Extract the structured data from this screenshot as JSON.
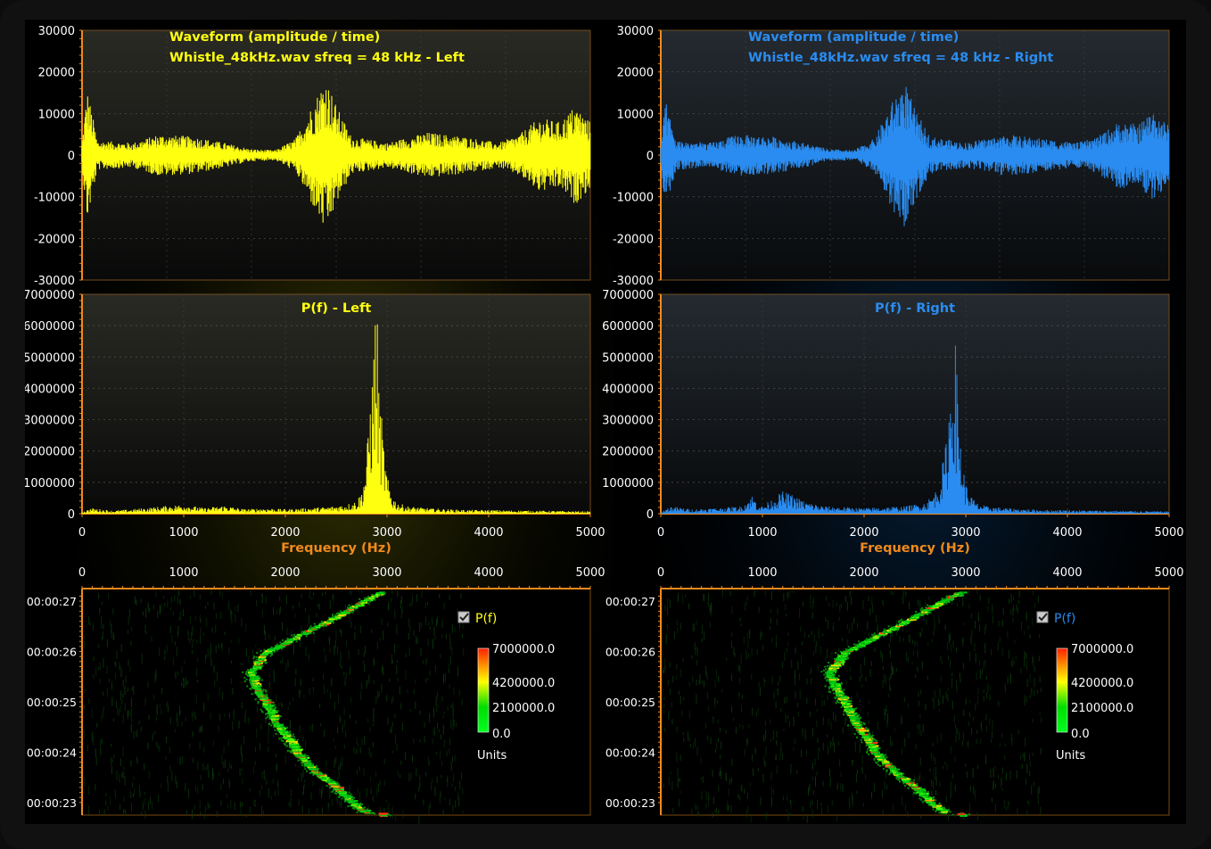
{
  "left": {
    "color": "#ffff10",
    "waveform": {
      "title_line1": "Waveform (amplitude / time)",
      "title_line2": "Whistle_48kHz.wav sfreq = 48 kHz - Left",
      "y_ticks": [
        "30000",
        "20000",
        "10000",
        "0",
        "-10000",
        "-20000",
        "-30000"
      ],
      "ylim": [
        -30000,
        30000
      ]
    },
    "spectrum": {
      "title": "P(f) - Left",
      "y_ticks": [
        "7000000",
        "6000000",
        "5000000",
        "4000000",
        "3000000",
        "2000000",
        "1000000",
        "0"
      ],
      "ylim": [
        0,
        7000000
      ],
      "x_ticks": [
        "0",
        "1000",
        "2000",
        "3000",
        "4000",
        "5000"
      ],
      "xlabel": "Frequency (Hz)"
    },
    "spectrogram": {
      "x_ticks": [
        "0",
        "1000",
        "2000",
        "3000",
        "4000",
        "5000"
      ],
      "y_ticks": [
        "00:00:27",
        "00:00:26",
        "00:00:25",
        "00:00:24",
        "00:00:23"
      ],
      "legend_label": "P(f)",
      "scale_labels": [
        "7000000.0",
        "4200000.0",
        "2100000.0",
        "0.0"
      ],
      "units": "Units"
    }
  },
  "right": {
    "color": "#2a8cf0",
    "waveform": {
      "title_line1": "Waveform (amplitude / time)",
      "title_line2": "Whistle_48kHz.wav sfreq = 48 kHz - Right",
      "y_ticks": [
        "30000",
        "20000",
        "10000",
        "0",
        "-10000",
        "-20000",
        "-30000"
      ],
      "ylim": [
        -30000,
        30000
      ]
    },
    "spectrum": {
      "title": "P(f) - Right",
      "y_ticks": [
        "7000000",
        "6000000",
        "5000000",
        "4000000",
        "3000000",
        "2000000",
        "1000000",
        "0"
      ],
      "ylim": [
        0,
        7000000
      ],
      "x_ticks": [
        "0",
        "1000",
        "2000",
        "3000",
        "4000",
        "5000"
      ],
      "xlabel": "Frequency (Hz)"
    },
    "spectrogram": {
      "x_ticks": [
        "0",
        "1000",
        "2000",
        "3000",
        "4000",
        "5000"
      ],
      "y_ticks": [
        "00:00:27",
        "00:00:26",
        "00:00:25",
        "00:00:24",
        "00:00:23"
      ],
      "legend_label": "P(f)",
      "scale_labels": [
        "7000000.0",
        "4200000.0",
        "2100000.0",
        "0.0"
      ],
      "units": "Units"
    }
  },
  "chart_data": [
    {
      "type": "line",
      "title": "Waveform (amplitude / time)",
      "subtitle": "Whistle_48kHz.wav sfreq = 48 kHz - Left",
      "ylim": [
        -30000,
        30000
      ],
      "grid": true,
      "envelope": [
        {
          "t": 0.0,
          "a": 3000
        },
        {
          "t": 0.01,
          "a": 16000
        },
        {
          "t": 0.02,
          "a": 10000
        },
        {
          "t": 0.03,
          "a": 3500
        },
        {
          "t": 0.1,
          "a": 3000
        },
        {
          "t": 0.15,
          "a": 5000
        },
        {
          "t": 0.22,
          "a": 4500
        },
        {
          "t": 0.28,
          "a": 3000
        },
        {
          "t": 0.33,
          "a": 1500
        },
        {
          "t": 0.38,
          "a": 1200
        },
        {
          "t": 0.42,
          "a": 4000
        },
        {
          "t": 0.46,
          "a": 14000
        },
        {
          "t": 0.48,
          "a": 19000
        },
        {
          "t": 0.5,
          "a": 12000
        },
        {
          "t": 0.53,
          "a": 4500
        },
        {
          "t": 0.6,
          "a": 3000
        },
        {
          "t": 0.68,
          "a": 5500
        },
        {
          "t": 0.75,
          "a": 4500
        },
        {
          "t": 0.82,
          "a": 3000
        },
        {
          "t": 0.86,
          "a": 5000
        },
        {
          "t": 0.9,
          "a": 9000
        },
        {
          "t": 0.94,
          "a": 8000
        },
        {
          "t": 0.97,
          "a": 12000
        },
        {
          "t": 1.0,
          "a": 8000
        }
      ]
    },
    {
      "type": "line",
      "title": "Waveform (amplitude / time)",
      "subtitle": "Whistle_48kHz.wav sfreq = 48 kHz - Right",
      "ylim": [
        -30000,
        30000
      ],
      "grid": true,
      "envelope": [
        {
          "t": 0.0,
          "a": 3000
        },
        {
          "t": 0.01,
          "a": 13000
        },
        {
          "t": 0.02,
          "a": 8000
        },
        {
          "t": 0.03,
          "a": 3500
        },
        {
          "t": 0.1,
          "a": 3000
        },
        {
          "t": 0.15,
          "a": 5000
        },
        {
          "t": 0.22,
          "a": 4500
        },
        {
          "t": 0.28,
          "a": 3000
        },
        {
          "t": 0.33,
          "a": 1500
        },
        {
          "t": 0.38,
          "a": 1200
        },
        {
          "t": 0.42,
          "a": 4000
        },
        {
          "t": 0.46,
          "a": 14000
        },
        {
          "t": 0.48,
          "a": 18000
        },
        {
          "t": 0.5,
          "a": 11000
        },
        {
          "t": 0.53,
          "a": 4500
        },
        {
          "t": 0.6,
          "a": 3000
        },
        {
          "t": 0.68,
          "a": 5000
        },
        {
          "t": 0.75,
          "a": 4000
        },
        {
          "t": 0.82,
          "a": 3000
        },
        {
          "t": 0.86,
          "a": 4500
        },
        {
          "t": 0.9,
          "a": 8000
        },
        {
          "t": 0.94,
          "a": 7500
        },
        {
          "t": 0.97,
          "a": 11000
        },
        {
          "t": 1.0,
          "a": 7000
        }
      ]
    },
    {
      "type": "area",
      "title": "P(f) - Left",
      "xlabel": "Frequency (Hz)",
      "xlim": [
        0,
        5000
      ],
      "ylim": [
        0,
        7000000
      ],
      "grid": true,
      "x": [
        0,
        100,
        300,
        500,
        800,
        1000,
        1200,
        1400,
        1600,
        1800,
        2000,
        2200,
        2400,
        2600,
        2700,
        2750,
        2800,
        2830,
        2860,
        2880,
        2900,
        2920,
        2950,
        2980,
        3000,
        3050,
        3100,
        3200,
        3400,
        3600,
        3800,
        4000,
        4200,
        4500,
        4800,
        5000
      ],
      "y": [
        50000,
        150000,
        80000,
        120000,
        200000,
        250000,
        150000,
        220000,
        120000,
        150000,
        120000,
        150000,
        180000,
        250000,
        350000,
        600000,
        1500000,
        3200000,
        3800000,
        5600000,
        5800000,
        3500000,
        2500000,
        1500000,
        1000000,
        500000,
        300000,
        200000,
        150000,
        120000,
        100000,
        100000,
        90000,
        80000,
        70000,
        60000
      ]
    },
    {
      "type": "area",
      "title": "P(f) - Right",
      "xlabel": "Frequency (Hz)",
      "xlim": [
        0,
        5000
      ],
      "ylim": [
        0,
        7000000
      ],
      "grid": true,
      "x": [
        0,
        100,
        300,
        500,
        800,
        900,
        950,
        1000,
        1100,
        1200,
        1300,
        1400,
        1600,
        1800,
        2000,
        2200,
        2400,
        2600,
        2700,
        2750,
        2800,
        2830,
        2860,
        2880,
        2900,
        2920,
        2950,
        2980,
        3000,
        3050,
        3100,
        3200,
        3400,
        3600,
        3800,
        4000,
        4200,
        4500,
        4800,
        5000
      ],
      "y": [
        50000,
        200000,
        120000,
        150000,
        200000,
        500000,
        300000,
        200000,
        400000,
        600000,
        500000,
        350000,
        200000,
        180000,
        150000,
        180000,
        200000,
        300000,
        600000,
        1000000,
        1800000,
        2800000,
        4000000,
        4800000,
        4600000,
        3300000,
        2000000,
        1200000,
        800000,
        500000,
        300000,
        200000,
        150000,
        120000,
        100000,
        100000,
        90000,
        80000,
        70000,
        60000
      ]
    },
    {
      "type": "heatmap",
      "legend": [
        "P(f)"
      ],
      "xlim": [
        0,
        5000
      ],
      "color_scale": [
        0,
        7000000
      ],
      "whistle_ridge": [
        {
          "time": "00:00:27.2",
          "freq": 2950
        },
        {
          "time": "00:00:27",
          "freq": 2750
        },
        {
          "time": "00:00:26.6",
          "freq": 2400
        },
        {
          "time": "00:00:26.3",
          "freq": 2100
        },
        {
          "time": "00:00:26",
          "freq": 1800
        },
        {
          "time": "00:00:25.6",
          "freq": 1650
        },
        {
          "time": "00:00:25.3",
          "freq": 1700
        },
        {
          "time": "00:00:25",
          "freq": 1800
        },
        {
          "time": "00:00:24.6",
          "freq": 1900
        },
        {
          "time": "00:00:24.2",
          "freq": 2050
        },
        {
          "time": "00:00:24",
          "freq": 2100
        },
        {
          "time": "00:00:23.6",
          "freq": 2300
        },
        {
          "time": "00:00:23.3",
          "freq": 2500
        },
        {
          "time": "00:00:23",
          "freq": 2650
        },
        {
          "time": "00:00:22.8",
          "freq": 2800
        }
      ]
    }
  ]
}
